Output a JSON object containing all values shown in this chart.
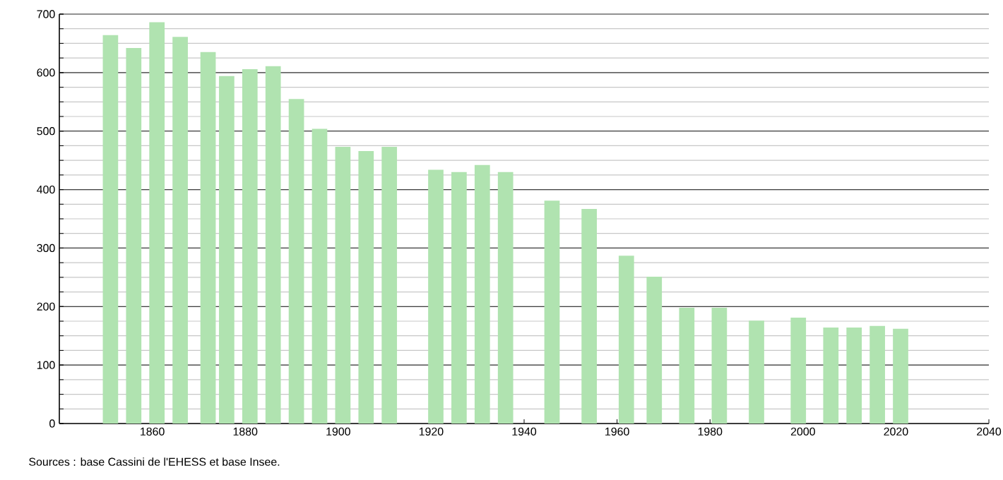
{
  "chart_data": {
    "type": "bar",
    "x": [
      1851,
      1856,
      1861,
      1866,
      1872,
      1876,
      1881,
      1886,
      1891,
      1896,
      1901,
      1906,
      1911,
      1921,
      1926,
      1931,
      1936,
      1946,
      1954,
      1962,
      1968,
      1975,
      1982,
      1990,
      1999,
      2006,
      2011,
      2016,
      2021
    ],
    "values": [
      664,
      642,
      686,
      661,
      635,
      594,
      606,
      611,
      555,
      504,
      473,
      466,
      473,
      434,
      430,
      442,
      430,
      381,
      367,
      287,
      251,
      198,
      198,
      176,
      181,
      164,
      164,
      167,
      162
    ],
    "color": "#b0e3b0",
    "xlim": [
      1840,
      2040
    ],
    "xticks": [
      1860,
      1880,
      1900,
      1920,
      1940,
      1960,
      1980,
      2000,
      2020,
      2040
    ],
    "ylim": [
      0,
      700
    ],
    "yticks": [
      0,
      {
        "value": 25,
        "label": null
      },
      {
        "value": 50,
        "label": null
      },
      {
        "value": 75,
        "label": null
      },
      100,
      {
        "value": 125,
        "label": null
      },
      {
        "value": 150,
        "label": null
      },
      {
        "value": 175,
        "label": null
      },
      200,
      {
        "value": 225,
        "label": null
      },
      {
        "value": 250,
        "label": null
      },
      {
        "value": 275,
        "label": null
      },
      300,
      {
        "value": 325,
        "label": null
      },
      {
        "value": 350,
        "label": null
      },
      {
        "value": 375,
        "label": null
      },
      400,
      {
        "value": 425,
        "label": null
      },
      {
        "value": 450,
        "label": null
      },
      {
        "value": 475,
        "label": null
      },
      500,
      {
        "value": 525,
        "label": null
      },
      {
        "value": 550,
        "label": null
      },
      {
        "value": 575,
        "label": null
      },
      600,
      {
        "value": 625,
        "label": null
      },
      {
        "value": 650,
        "label": null
      },
      {
        "value": 675,
        "label": null
      },
      700
    ],
    "grid": "y",
    "annotations": [
      "Sources : base Cassini de l'EHESS et base Insee."
    ]
  }
}
